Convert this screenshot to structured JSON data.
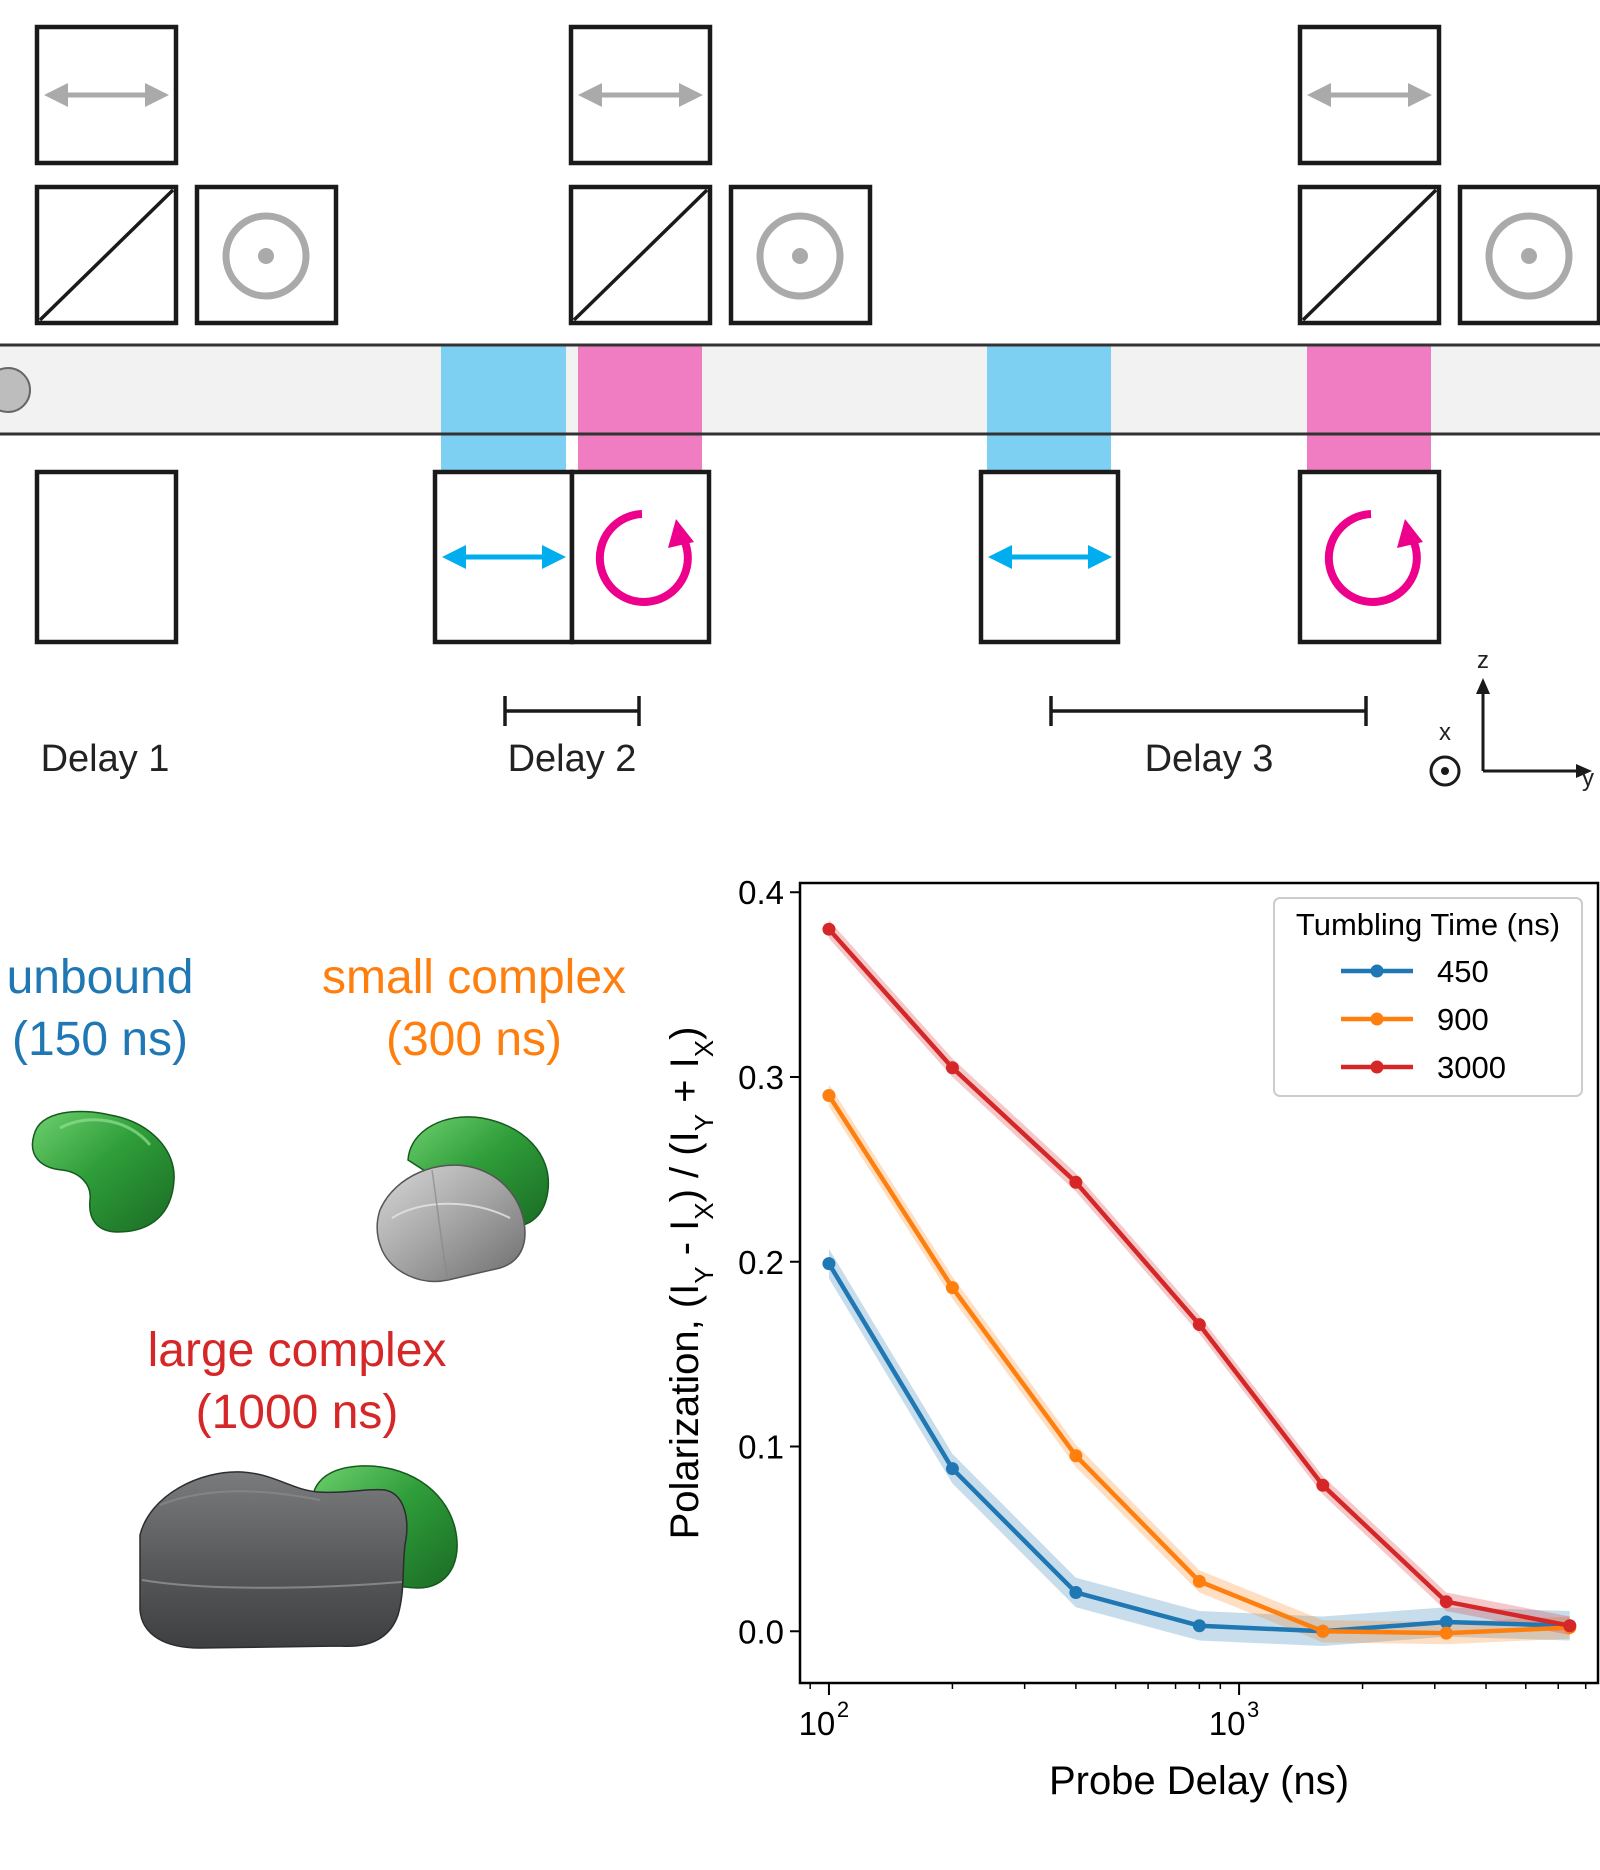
{
  "diagram": {
    "delays": {
      "delay1": "Delay 1",
      "delay2": "Delay 2",
      "delay3": "Delay 3"
    },
    "axes": {
      "z": "z",
      "x": "x",
      "y": "y"
    },
    "colors": {
      "linear_probe": "#00AEEF",
      "circular_probe": "#EC008C",
      "blue_window": "#7DD0F2",
      "pink_window": "#F07CC2",
      "gray_symbol": "#AAAAAA",
      "channel": "#F2F2F2"
    }
  },
  "molecules": {
    "unbound": {
      "name": "unbound",
      "time": "(150 ns)",
      "color": "#1f77b4"
    },
    "small": {
      "name": "small complex",
      "time": "(300 ns)",
      "color": "#ff7f0e"
    },
    "large": {
      "name": "large complex",
      "time": "(1000 ns)",
      "color": "#d62728"
    }
  },
  "chart_data": {
    "type": "line",
    "xlabel": "Probe Delay (ns)",
    "ylabel": "Polarization, (I_Y - I_X) / (I_Y + I_X)",
    "xscale": "log",
    "xlim": [
      85,
      7500
    ],
    "ylim": [
      -0.028,
      0.405
    ],
    "yticks": [
      0.0,
      0.1,
      0.2,
      0.3,
      0.4
    ],
    "ytick_labels": [
      "0.0",
      "0.1",
      "0.2",
      "0.3",
      "0.4"
    ],
    "xtick_labels": [
      {
        "base": "10",
        "exp": "2"
      },
      {
        "base": "10",
        "exp": "3"
      }
    ],
    "legend": {
      "title": "Tumbling Time (ns)",
      "placement": "top-right"
    },
    "x": [
      100,
      200,
      400,
      800,
      1600,
      3200,
      6400
    ],
    "series": [
      {
        "name": "450",
        "color": "#1f77b4",
        "values": [
          0.199,
          0.088,
          0.021,
          0.003,
          0.0,
          0.005,
          0.003
        ],
        "band": 0.008
      },
      {
        "name": "900",
        "color": "#ff7f0e",
        "values": [
          0.29,
          0.186,
          0.095,
          0.027,
          0.0,
          -0.001,
          0.002
        ],
        "band": 0.006
      },
      {
        "name": "3000",
        "color": "#d62728",
        "values": [
          0.38,
          0.305,
          0.243,
          0.166,
          0.079,
          0.016,
          0.003
        ],
        "band": 0.005
      }
    ]
  }
}
